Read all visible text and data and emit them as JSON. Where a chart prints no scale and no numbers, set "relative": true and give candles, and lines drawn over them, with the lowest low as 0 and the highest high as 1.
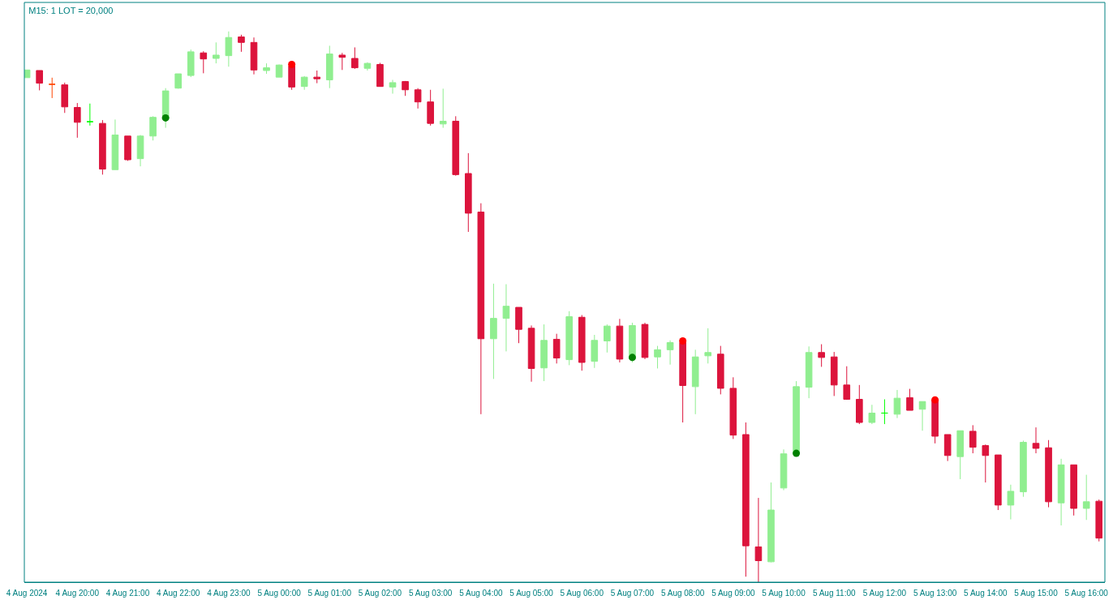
{
  "chart_data": {
    "type": "candlestick",
    "title": "M15: 1 LOT = 20,000",
    "relative": true,
    "marker": "circle",
    "xlim": [
      "2024-08-04T18:57",
      "2024-08-05T16:22"
    ],
    "xticks": [
      {
        "value": "2024-08-04T19:00",
        "label": "4 Aug 2024"
      },
      {
        "value": "2024-08-04T20:00",
        "label": "4 Aug 20:00"
      },
      {
        "value": "2024-08-04T21:00",
        "label": "4 Aug 21:00"
      },
      {
        "value": "2024-08-04T22:00",
        "label": "4 Aug 22:00"
      },
      {
        "value": "2024-08-04T23:00",
        "label": "4 Aug 23:00"
      },
      {
        "value": "2024-08-05T00:00",
        "label": "5 Aug 00:00"
      },
      {
        "value": "2024-08-05T01:00",
        "label": "5 Aug 01:00"
      },
      {
        "value": "2024-08-05T02:00",
        "label": "5 Aug 02:00"
      },
      {
        "value": "2024-08-05T03:00",
        "label": "5 Aug 03:00"
      },
      {
        "value": "2024-08-05T04:00",
        "label": "5 Aug 04:00"
      },
      {
        "value": "2024-08-05T05:00",
        "label": "5 Aug 05:00"
      },
      {
        "value": "2024-08-05T06:00",
        "label": "5 Aug 06:00"
      },
      {
        "value": "2024-08-05T07:00",
        "label": "5 Aug 07:00"
      },
      {
        "value": "2024-08-05T08:00",
        "label": "5 Aug 08:00"
      },
      {
        "value": "2024-08-05T09:00",
        "label": "5 Aug 09:00"
      },
      {
        "value": "2024-08-05T10:00",
        "label": "5 Aug 10:00"
      },
      {
        "value": "2024-08-05T11:00",
        "label": "5 Aug 11:00"
      },
      {
        "value": "2024-08-05T12:00",
        "label": "5 Aug 12:00"
      },
      {
        "value": "2024-08-05T13:00",
        "label": "5 Aug 13:00"
      },
      {
        "value": "2024-08-05T14:00",
        "label": "5 Aug 14:00"
      },
      {
        "value": "2024-08-05T15:00",
        "label": "5 Aug 15:00"
      },
      {
        "value": "2024-08-05T16:00",
        "label": "5 Aug 16:00"
      }
    ],
    "x": [
      "2024-08-04T19:00",
      "2024-08-04T19:15",
      "2024-08-04T19:30",
      "2024-08-04T19:45",
      "2024-08-04T20:00",
      "2024-08-04T20:15",
      "2024-08-04T20:30",
      "2024-08-04T20:45",
      "2024-08-04T21:00",
      "2024-08-04T21:15",
      "2024-08-04T21:30",
      "2024-08-04T21:45",
      "2024-08-04T22:00",
      "2024-08-04T22:15",
      "2024-08-04T22:30",
      "2024-08-04T22:45",
      "2024-08-04T23:00",
      "2024-08-04T23:15",
      "2024-08-04T23:30",
      "2024-08-04T23:45",
      "2024-08-05T00:00",
      "2024-08-05T00:15",
      "2024-08-05T00:30",
      "2024-08-05T00:45",
      "2024-08-05T01:00",
      "2024-08-05T01:15",
      "2024-08-05T01:30",
      "2024-08-05T01:45",
      "2024-08-05T02:00",
      "2024-08-05T02:15",
      "2024-08-05T02:30",
      "2024-08-05T02:45",
      "2024-08-05T03:00",
      "2024-08-05T03:15",
      "2024-08-05T03:30",
      "2024-08-05T03:45",
      "2024-08-05T04:00",
      "2024-08-05T04:15",
      "2024-08-05T04:30",
      "2024-08-05T04:45",
      "2024-08-05T05:00",
      "2024-08-05T05:15",
      "2024-08-05T05:30",
      "2024-08-05T05:45",
      "2024-08-05T06:00",
      "2024-08-05T06:15",
      "2024-08-05T06:30",
      "2024-08-05T06:45",
      "2024-08-05T07:00",
      "2024-08-05T07:15",
      "2024-08-05T07:30",
      "2024-08-05T07:45",
      "2024-08-05T08:00",
      "2024-08-05T08:15",
      "2024-08-05T08:30",
      "2024-08-05T08:45",
      "2024-08-05T09:00",
      "2024-08-05T09:15",
      "2024-08-05T09:30",
      "2024-08-05T09:45",
      "2024-08-05T10:00",
      "2024-08-05T10:15",
      "2024-08-05T10:30",
      "2024-08-05T10:45",
      "2024-08-05T11:00",
      "2024-08-05T11:15",
      "2024-08-05T11:30",
      "2024-08-05T11:45",
      "2024-08-05T12:00",
      "2024-08-05T12:15",
      "2024-08-05T12:30",
      "2024-08-05T12:45",
      "2024-08-05T13:00",
      "2024-08-05T13:15",
      "2024-08-05T13:30",
      "2024-08-05T13:45",
      "2024-08-05T14:00",
      "2024-08-05T14:15",
      "2024-08-05T14:30",
      "2024-08-05T14:45",
      "2024-08-05T15:00",
      "2024-08-05T15:15",
      "2024-08-05T15:30",
      "2024-08-05T15:45",
      "2024-08-05T16:00",
      "2024-08-05T16:15"
    ],
    "ohlc": [
      [
        0.916,
        0.93,
        0.916,
        0.93
      ],
      [
        0.929,
        0.929,
        0.893,
        0.906
      ],
      [
        0.904,
        0.916,
        0.879,
        0.904
      ],
      [
        0.903,
        0.907,
        0.852,
        0.863
      ],
      [
        0.862,
        0.87,
        0.807,
        0.835
      ],
      [
        0.836,
        0.869,
        0.829,
        0.836
      ],
      [
        0.833,
        0.839,
        0.74,
        0.75
      ],
      [
        0.749,
        0.84,
        0.749,
        0.812
      ],
      [
        0.81,
        0.81,
        0.765,
        0.767
      ],
      [
        0.769,
        0.812,
        0.755,
        0.81
      ],
      [
        0.81,
        0.846,
        0.802,
        0.844
      ],
      [
        0.842,
        0.897,
        0.825,
        0.892
      ],
      [
        0.897,
        0.923,
        0.896,
        0.923
      ],
      [
        0.92,
        0.967,
        0.917,
        0.963
      ],
      [
        0.961,
        0.964,
        0.924,
        0.95
      ],
      [
        0.951,
        0.98,
        0.942,
        0.957
      ],
      [
        0.956,
        1.0,
        0.936,
        0.989
      ],
      [
        0.99,
        0.994,
        0.963,
        0.98
      ],
      [
        0.98,
        0.989,
        0.922,
        0.93
      ],
      [
        0.929,
        0.942,
        0.923,
        0.934
      ],
      [
        0.917,
        0.94,
        0.917,
        0.939
      ],
      [
        0.937,
        0.939,
        0.894,
        0.899
      ],
      [
        0.9,
        0.919,
        0.894,
        0.917
      ],
      [
        0.917,
        0.929,
        0.906,
        0.914
      ],
      [
        0.912,
        0.974,
        0.897,
        0.959
      ],
      [
        0.957,
        0.961,
        0.93,
        0.953
      ],
      [
        0.951,
        0.971,
        0.932,
        0.934
      ],
      [
        0.933,
        0.944,
        0.929,
        0.942
      ],
      [
        0.94,
        0.943,
        0.9,
        0.9
      ],
      [
        0.899,
        0.912,
        0.887,
        0.907
      ],
      [
        0.909,
        0.91,
        0.883,
        0.894
      ],
      [
        0.894,
        0.897,
        0.86,
        0.872
      ],
      [
        0.872,
        0.894,
        0.829,
        0.833
      ],
      [
        0.832,
        0.896,
        0.825,
        0.837
      ],
      [
        0.837,
        0.846,
        0.738,
        0.74
      ],
      [
        0.742,
        0.779,
        0.636,
        0.67
      ],
      [
        0.672,
        0.688,
        0.305,
        0.442
      ],
      [
        0.442,
        0.542,
        0.369,
        0.479
      ],
      [
        0.479,
        0.541,
        0.419,
        0.501
      ],
      [
        0.499,
        0.499,
        0.434,
        0.459
      ],
      [
        0.461,
        0.466,
        0.364,
        0.388
      ],
      [
        0.389,
        0.468,
        0.365,
        0.439
      ],
      [
        0.441,
        0.451,
        0.397,
        0.407
      ],
      [
        0.404,
        0.492,
        0.394,
        0.482
      ],
      [
        0.481,
        0.485,
        0.384,
        0.399
      ],
      [
        0.401,
        0.449,
        0.389,
        0.439
      ],
      [
        0.438,
        0.468,
        0.417,
        0.465
      ],
      [
        0.465,
        0.478,
        0.399,
        0.405
      ],
      [
        0.405,
        0.471,
        0.399,
        0.466
      ],
      [
        0.468,
        0.471,
        0.405,
        0.408
      ],
      [
        0.409,
        0.429,
        0.388,
        0.422
      ],
      [
        0.422,
        0.439,
        0.395,
        0.435
      ],
      [
        0.435,
        0.438,
        0.29,
        0.357
      ],
      [
        0.355,
        0.422,
        0.305,
        0.409
      ],
      [
        0.411,
        0.461,
        0.397,
        0.417
      ],
      [
        0.414,
        0.429,
        0.341,
        0.352
      ],
      [
        0.352,
        0.372,
        0.26,
        0.267
      ],
      [
        0.268,
        0.29,
        0.01,
        0.066
      ],
      [
        0.064,
        0.153,
        0,
        0.039
      ],
      [
        0.037,
        0.181,
        0.036,
        0.131
      ],
      [
        0.171,
        0.241,
        0.167,
        0.233
      ],
      [
        0.233,
        0.365,
        0.233,
        0.355
      ],
      [
        0.354,
        0.428,
        0.334,
        0.417
      ],
      [
        0.417,
        0.432,
        0.391,
        0.408
      ],
      [
        0.409,
        0.418,
        0.338,
        0.358
      ],
      [
        0.358,
        0.392,
        0.331,
        0.332
      ],
      [
        0.332,
        0.358,
        0.287,
        0.29
      ],
      [
        0.29,
        0.322,
        0.287,
        0.307
      ],
      [
        0.307,
        0.332,
        0.287,
        0.307
      ],
      [
        0.305,
        0.349,
        0.298,
        0.334
      ],
      [
        0.335,
        0.351,
        0.312,
        0.312
      ],
      [
        0.314,
        0.328,
        0.275,
        0.328
      ],
      [
        0.33,
        0.331,
        0.252,
        0.265
      ],
      [
        0.268,
        0.268,
        0.22,
        0.23
      ],
      [
        0.228,
        0.275,
        0.187,
        0.275
      ],
      [
        0.274,
        0.285,
        0.234,
        0.245
      ],
      [
        0.248,
        0.25,
        0.181,
        0.23
      ],
      [
        0.231,
        0.231,
        0.131,
        0.14
      ],
      [
        0.14,
        0.177,
        0.114,
        0.165
      ],
      [
        0.164,
        0.257,
        0.155,
        0.254
      ],
      [
        0.252,
        0.281,
        0.234,
        0.243
      ],
      [
        0.244,
        0.258,
        0.136,
        0.146
      ],
      [
        0.144,
        0.224,
        0.103,
        0.213
      ],
      [
        0.213,
        0.213,
        0.121,
        0.134
      ],
      [
        0.134,
        0.195,
        0.113,
        0.146
      ],
      [
        0.147,
        0.15,
        0.074,
        0.08
      ]
    ],
    "colors": [
      "#90ee90",
      "#dc143c",
      "#ff4500",
      "#dc143c",
      "#dc143c",
      "#00ff00",
      "#dc143c",
      "#90ee90",
      "#dc143c",
      "#90ee90",
      "#90ee90",
      "#90ee90",
      "#90ee90",
      "#90ee90",
      "#dc143c",
      "#90ee90",
      "#90ee90",
      "#dc143c",
      "#dc143c",
      "#90ee90",
      "#90ee90",
      "#dc143c",
      "#90ee90",
      "#dc143c",
      "#90ee90",
      "#dc143c",
      "#dc143c",
      "#90ee90",
      "#dc143c",
      "#90ee90",
      "#dc143c",
      "#dc143c",
      "#dc143c",
      "#90ee90",
      "#dc143c",
      "#dc143c",
      "#dc143c",
      "#90ee90",
      "#90ee90",
      "#dc143c",
      "#dc143c",
      "#90ee90",
      "#dc143c",
      "#90ee90",
      "#dc143c",
      "#90ee90",
      "#90ee90",
      "#dc143c",
      "#90ee90",
      "#dc143c",
      "#90ee90",
      "#90ee90",
      "#dc143c",
      "#90ee90",
      "#90ee90",
      "#dc143c",
      "#dc143c",
      "#dc143c",
      "#dc143c",
      "#90ee90",
      "#90ee90",
      "#90ee90",
      "#90ee90",
      "#dc143c",
      "#dc143c",
      "#dc143c",
      "#dc143c",
      "#90ee90",
      "#00ff00",
      "#90ee90",
      "#dc143c",
      "#90ee90",
      "#dc143c",
      "#dc143c",
      "#90ee90",
      "#dc143c",
      "#dc143c",
      "#dc143c",
      "#90ee90",
      "#90ee90",
      "#dc143c",
      "#dc143c",
      "#90ee90",
      "#dc143c",
      "#90ee90",
      "#dc143c"
    ],
    "series": [
      {
        "type": "scatter",
        "color": "#ff0000",
        "x": [
          "2024-08-05T00:15",
          "2024-08-05T08:00",
          "2024-08-05T13:00"
        ],
        "values": [
          0.94,
          0.438,
          0.331
        ]
      },
      {
        "type": "scatter",
        "color": "#008000",
        "x": [
          "2024-08-04T21:45",
          "2024-08-05T07:00",
          "2024-08-05T10:15"
        ],
        "values": [
          0.843,
          0.408,
          0.234
        ]
      }
    ]
  }
}
